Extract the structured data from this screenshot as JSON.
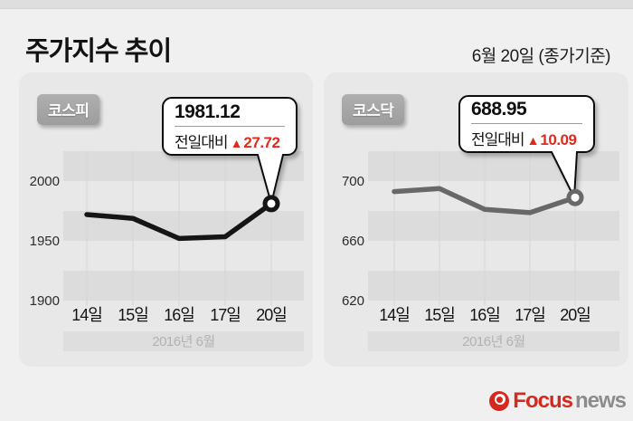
{
  "header": {
    "title": "주가지수 추이",
    "date_note": "6월 20일 (종가기준)"
  },
  "colors": {
    "accent_red": "#e02a1e",
    "kospi_line": "#151515",
    "kosdaq_line": "#686868",
    "brand_red": "#d6281e",
    "brand_gray": "#8c8c8c"
  },
  "chart_data": [
    {
      "type": "line",
      "name": "코스피",
      "x": [
        "14일",
        "15일",
        "16일",
        "17일",
        "20일"
      ],
      "values": [
        1972.0,
        1968.8,
        1952.0,
        1953.4,
        1981.12
      ],
      "yticks": [
        2000,
        1950,
        1900
      ],
      "ylim": [
        1900,
        2025
      ],
      "period": "2016년 6월",
      "value_label": "1981.12",
      "change_prefix": "전일대비",
      "change_arrow": "▲",
      "change_value": "27.72",
      "line_color": "#151515"
    },
    {
      "type": "line",
      "name": "코스닥",
      "x": [
        "14일",
        "15일",
        "16일",
        "17일",
        "20일"
      ],
      "values": [
        693.0,
        695.0,
        681.0,
        678.86,
        688.95
      ],
      "yticks": [
        700,
        660,
        620
      ],
      "ylim": [
        620,
        720
      ],
      "period": "2016년 6월",
      "value_label": "688.95",
      "change_prefix": "전일대비",
      "change_arrow": "▲",
      "change_value": "10.09",
      "line_color": "#686868"
    }
  ],
  "footer": {
    "brand_focus": "Focus",
    "brand_news": "news"
  }
}
